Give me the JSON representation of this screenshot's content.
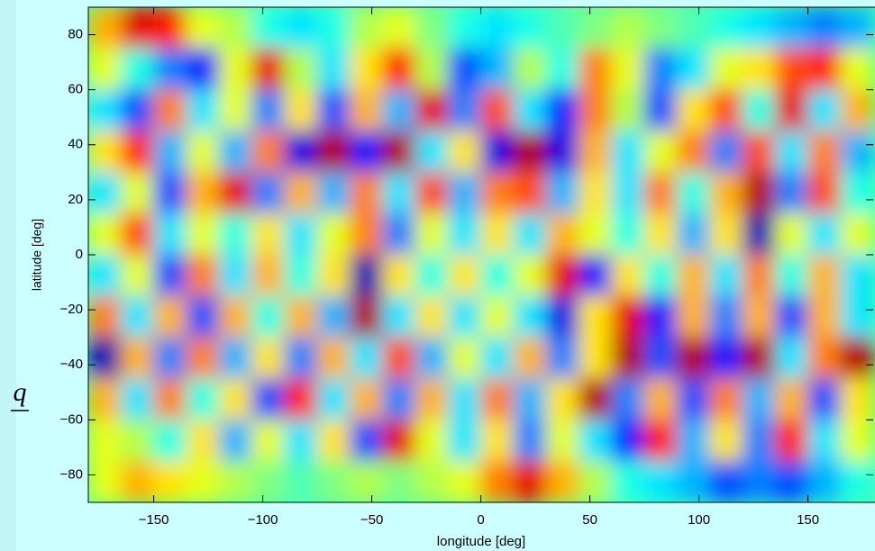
{
  "chart_data": {
    "type": "heatmap",
    "colormap": "jet",
    "xlabel": "longitude [deg]",
    "ylabel": "latitude [deg]",
    "side_label": "q",
    "x": [
      -172.5,
      -157.5,
      -142.5,
      -127.5,
      -112.5,
      -97.5,
      -82.5,
      -67.5,
      -52.5,
      -37.5,
      -22.5,
      -7.5,
      7.5,
      22.5,
      37.5,
      52.5,
      67.5,
      82.5,
      97.5,
      112.5,
      127.5,
      142.5,
      157.5,
      172.5
    ],
    "y": [
      82.5,
      67.5,
      52.5,
      37.5,
      22.5,
      7.5,
      -7.5,
      -22.5,
      -37.5,
      -52.5,
      -67.5,
      -82.5
    ],
    "values": [
      [
        0.4,
        0.8,
        0.7,
        0.2,
        0.1,
        -0.2,
        -0.3,
        -0.2,
        0.1,
        0.2,
        0,
        -0.2,
        -0.3,
        -0.2,
        -0.1,
        0,
        0.1,
        0,
        -0.1,
        -0.2,
        -0.3,
        -0.4,
        -0.5,
        -0.4
      ],
      [
        0.2,
        -0.2,
        -0.5,
        -0.7,
        0.2,
        0.8,
        0.1,
        -0.3,
        0.3,
        0.7,
        0.1,
        -0.6,
        -0.4,
        0.1,
        -0.2,
        0.5,
        0.2,
        -0.5,
        -0.3,
        0.2,
        0.3,
        0.6,
        0.7,
        0.2
      ],
      [
        -0.3,
        -0.6,
        0.5,
        -0.3,
        0.2,
        -0.5,
        0.3,
        -0.6,
        0.4,
        -0.4,
        0.8,
        -0.5,
        0.6,
        -0.3,
        -0.7,
        0.5,
        0.1,
        -0.6,
        0.3,
        0.6,
        -0.2,
        0.8,
        -0.3,
        0.4
      ],
      [
        0.3,
        0.7,
        -0.4,
        0.2,
        -0.4,
        0.5,
        -0.8,
        0.9,
        -0.7,
        0.9,
        -0.3,
        0.3,
        -0.8,
        0.9,
        -0.8,
        0.4,
        -0.3,
        0.2,
        0.5,
        -0.5,
        0.6,
        -0.3,
        0.5,
        -0.4
      ],
      [
        -0.3,
        0.2,
        -0.6,
        0.4,
        0.8,
        -0.5,
        0.4,
        -0.4,
        0.5,
        -0.3,
        0.6,
        -0.4,
        0.5,
        0.6,
        -0.4,
        0.3,
        -0.3,
        0.5,
        -0.2,
        0.4,
        0.9,
        -0.5,
        0.6,
        -0.2
      ],
      [
        0.2,
        0.6,
        -0.3,
        0.2,
        -0.2,
        0.3,
        -0.3,
        0.2,
        0.5,
        -0.5,
        0.2,
        -0.3,
        0.3,
        -0.3,
        0.4,
        0.2,
        -0.2,
        0.3,
        -0.4,
        0.3,
        -0.9,
        0.2,
        -0.3,
        0.2
      ],
      [
        -0.3,
        0.2,
        -0.6,
        0.5,
        -0.3,
        0.4,
        -0.2,
        0.3,
        -0.9,
        0.3,
        -0.2,
        0.3,
        -0.2,
        0.2,
        0.8,
        -0.7,
        0.3,
        -0.2,
        0.4,
        -0.3,
        0.5,
        -0.2,
        0.4,
        -0.3
      ],
      [
        0.5,
        -0.3,
        0.4,
        -0.6,
        0.4,
        -0.2,
        0.4,
        -0.4,
        0.9,
        -0.3,
        0.3,
        -0.3,
        0.2,
        -0.3,
        -0.8,
        0.3,
        0.8,
        -0.7,
        0.4,
        -0.5,
        0.4,
        -0.6,
        0.4,
        -0.3
      ],
      [
        -0.9,
        0.4,
        -0.5,
        0.5,
        -0.4,
        0.3,
        -0.5,
        0.4,
        -0.3,
        0.6,
        -0.4,
        0.2,
        -0.3,
        0.4,
        -0.5,
        0.3,
        0.9,
        -0.6,
        0.9,
        -0.7,
        0.9,
        -0.3,
        0.5,
        0.9
      ],
      [
        0.4,
        -0.3,
        0.5,
        -0.2,
        0.3,
        -0.6,
        0.7,
        -0.3,
        0.4,
        -0.5,
        0.4,
        -0.3,
        0.5,
        -0.4,
        0.3,
        0.9,
        -0.5,
        0.4,
        -0.6,
        0.5,
        -0.4,
        0.4,
        -0.6,
        0.3
      ],
      [
        0.2,
        0.1,
        -0.2,
        0.3,
        -0.4,
        0.2,
        -0.3,
        0.3,
        -0.6,
        0.8,
        0.2,
        -0.3,
        0.3,
        -0.5,
        0.2,
        -0.3,
        -0.7,
        0.7,
        -0.4,
        0.3,
        -0.5,
        0.7,
        -0.3,
        0.2
      ],
      [
        0.2,
        0.4,
        0.3,
        0.2,
        0.1,
        0,
        -0.1,
        0,
        0.1,
        0,
        0.1,
        0.2,
        0.5,
        0.8,
        0.4,
        0.1,
        -0.2,
        -0.3,
        -0.4,
        -0.6,
        -0.5,
        -0.6,
        -0.4,
        -0.2
      ]
    ],
    "zlim": [
      -1,
      1
    ],
    "xlim": [
      -180,
      180
    ],
    "xticks": [
      {
        "value": -150,
        "label": "−150"
      },
      {
        "value": -100,
        "label": "−100"
      },
      {
        "value": -50,
        "label": "−50"
      },
      0,
      50,
      100,
      150
    ],
    "ylim": [
      -90,
      90
    ],
    "yticks": [
      {
        "value": -80,
        "label": "−80"
      },
      {
        "value": -60,
        "label": "−60"
      },
      {
        "value": -40,
        "label": "−40"
      },
      {
        "value": -20,
        "label": "−20"
      },
      0,
      20,
      40,
      60,
      80
    ]
  }
}
